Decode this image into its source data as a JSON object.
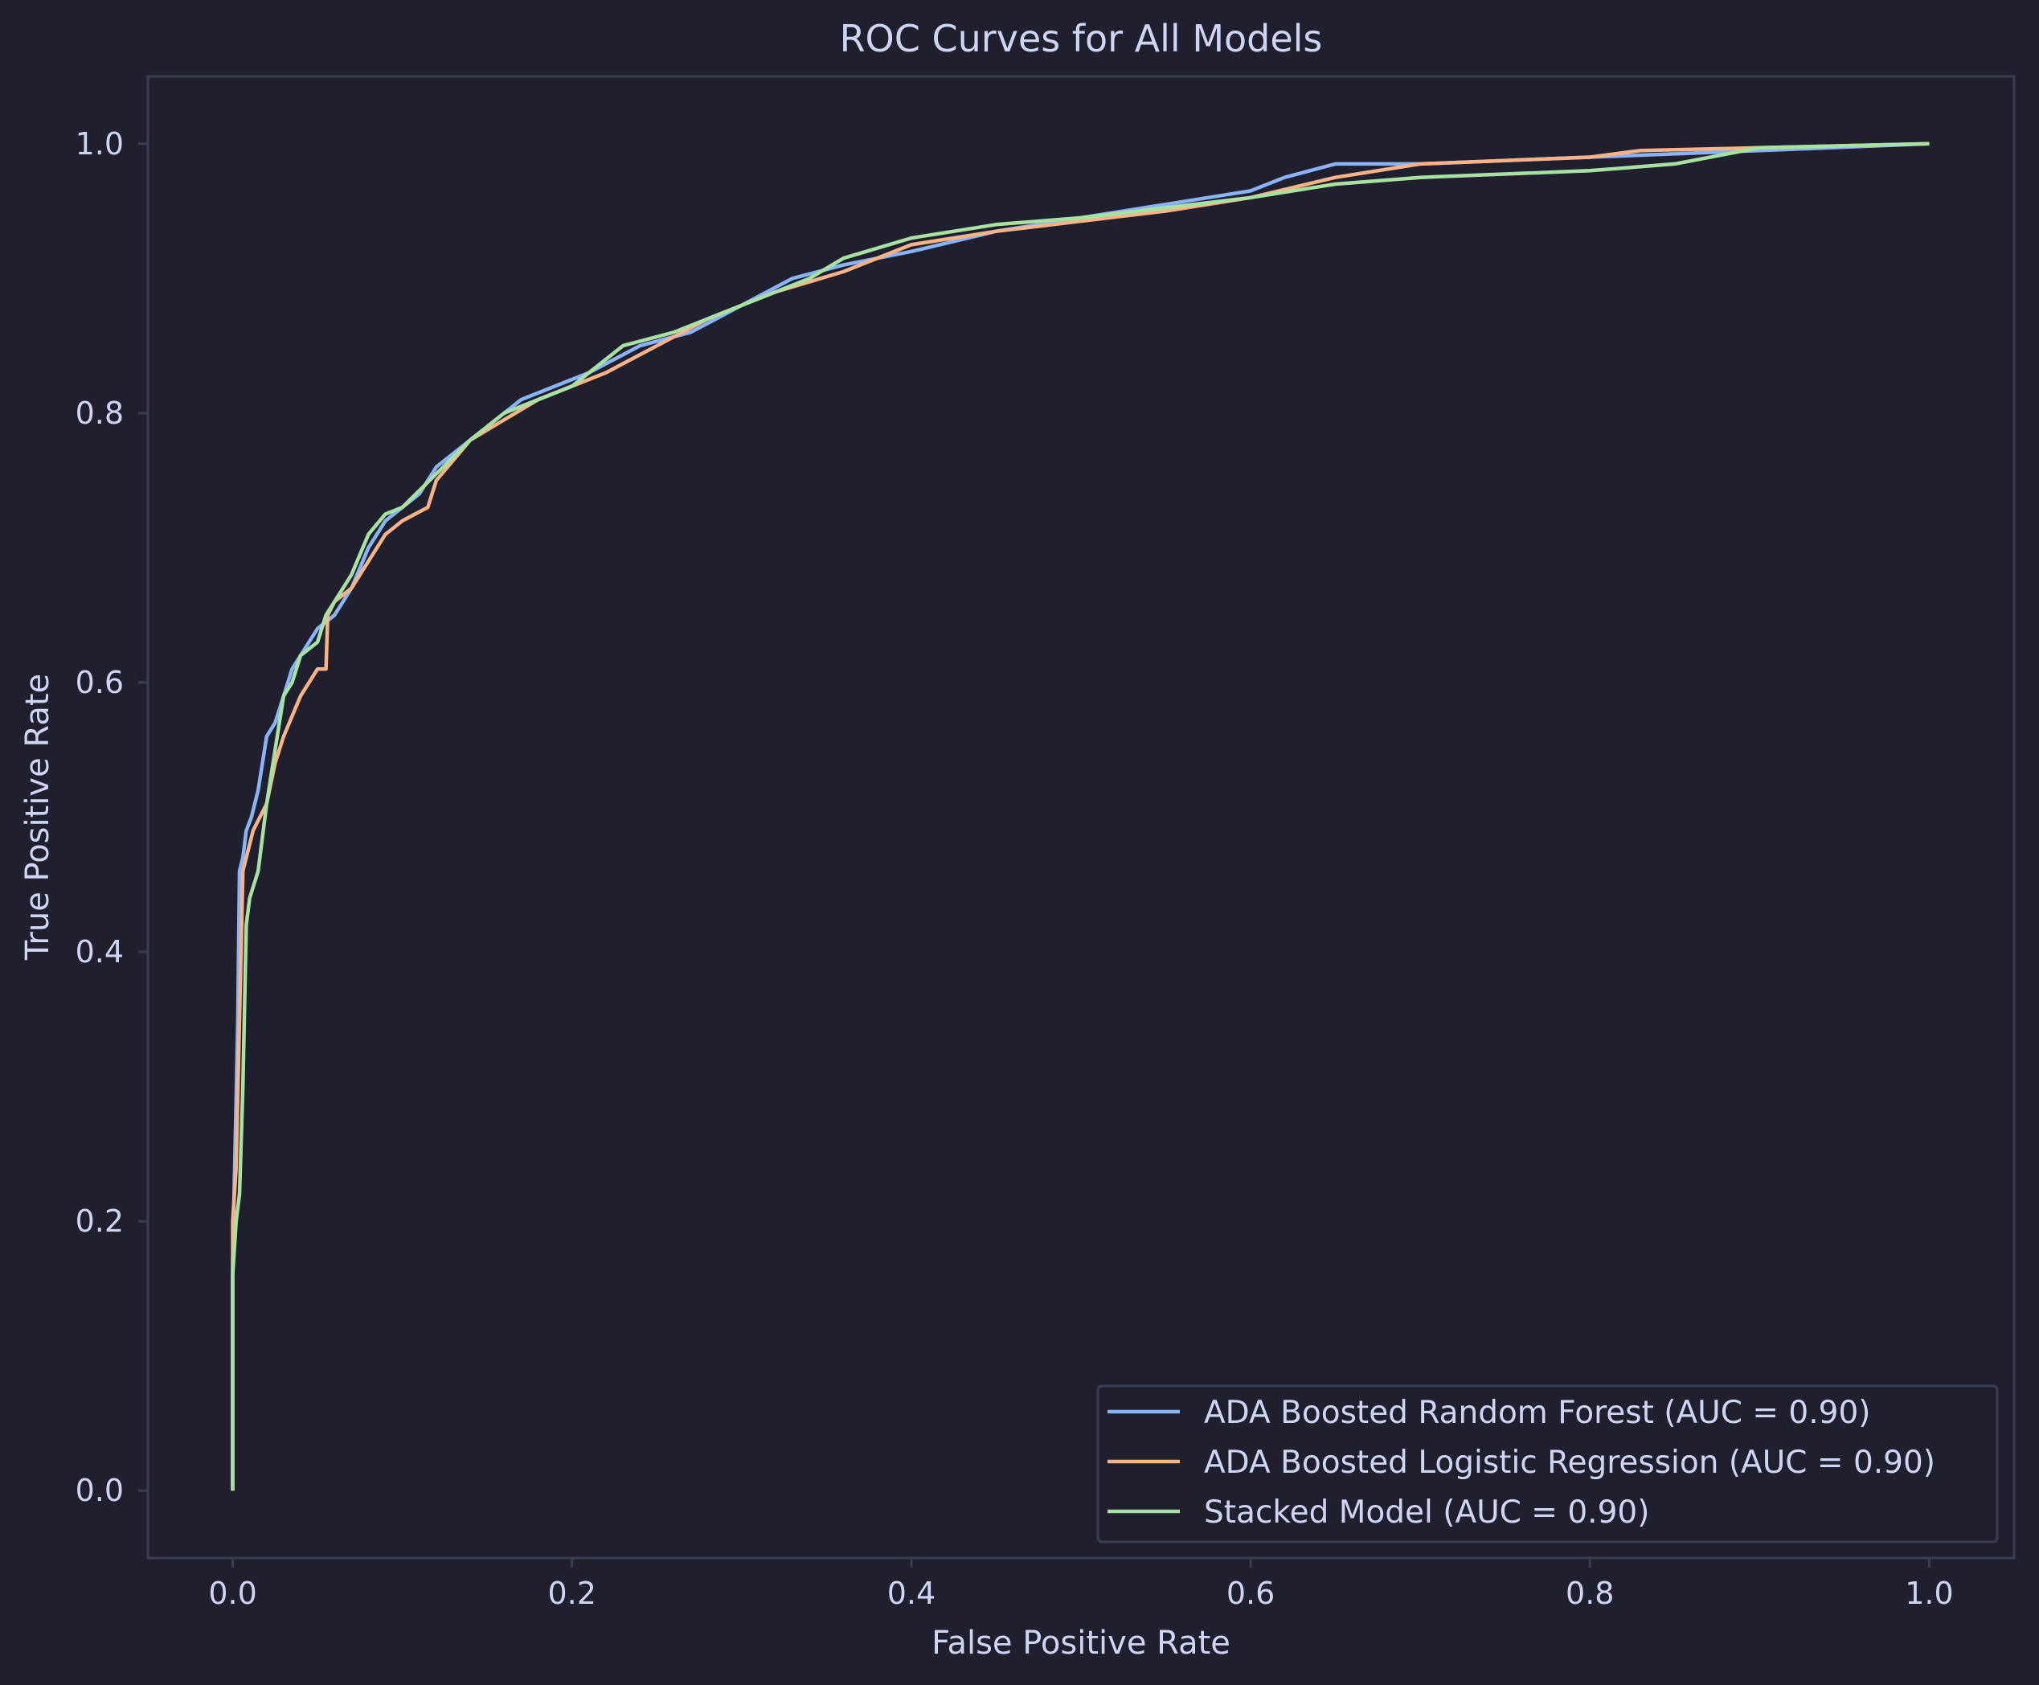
{
  "chart_data": {
    "type": "line",
    "title": "ROC Curves for All Models",
    "xlabel": "False Positive Rate",
    "ylabel": "True Positive Rate",
    "xlim": [
      -0.05,
      1.05
    ],
    "ylim": [
      -0.05,
      1.05
    ],
    "xticks": [
      "0.0",
      "0.2",
      "0.4",
      "0.6",
      "0.8",
      "1.0"
    ],
    "yticks": [
      "0.0",
      "0.2",
      "0.4",
      "0.6",
      "0.8",
      "1.0"
    ],
    "grid": false,
    "legend_position": "lower-right",
    "colors": {
      "background": "#1f1f2e",
      "spine": "#3b3d52",
      "text": "#cdd6f4"
    },
    "series": [
      {
        "name": "ADA Boosted Random Forest (AUC = 0.90)",
        "color": "#89b4fa",
        "x": [
          0.0,
          0.0,
          0.003,
          0.004,
          0.006,
          0.008,
          0.011,
          0.015,
          0.02,
          0.025,
          0.03,
          0.035,
          0.04,
          0.045,
          0.05,
          0.06,
          0.07,
          0.08,
          0.09,
          0.1,
          0.11,
          0.12,
          0.14,
          0.16,
          0.17,
          0.19,
          0.21,
          0.24,
          0.27,
          0.3,
          0.33,
          0.36,
          0.4,
          0.45,
          0.5,
          0.55,
          0.6,
          0.62,
          0.65,
          0.7,
          0.8,
          0.9,
          1.0
        ],
        "y": [
          0.0,
          0.17,
          0.35,
          0.46,
          0.47,
          0.49,
          0.5,
          0.52,
          0.56,
          0.57,
          0.59,
          0.61,
          0.62,
          0.63,
          0.64,
          0.65,
          0.67,
          0.7,
          0.72,
          0.73,
          0.74,
          0.76,
          0.78,
          0.8,
          0.81,
          0.82,
          0.83,
          0.85,
          0.86,
          0.88,
          0.9,
          0.91,
          0.92,
          0.935,
          0.945,
          0.955,
          0.965,
          0.975,
          0.985,
          0.985,
          0.99,
          0.995,
          1.0
        ]
      },
      {
        "name": "ADA Boosted Logistic Regression (AUC = 0.90)",
        "color": "#fab387",
        "x": [
          0.0,
          0.0,
          0.002,
          0.004,
          0.006,
          0.008,
          0.012,
          0.02,
          0.025,
          0.03,
          0.04,
          0.05,
          0.055,
          0.056,
          0.06,
          0.07,
          0.08,
          0.09,
          0.1,
          0.115,
          0.12,
          0.14,
          0.16,
          0.18,
          0.2,
          0.22,
          0.25,
          0.28,
          0.32,
          0.36,
          0.4,
          0.45,
          0.55,
          0.6,
          0.65,
          0.7,
          0.8,
          0.83,
          0.9,
          1.0
        ],
        "y": [
          0.0,
          0.2,
          0.24,
          0.35,
          0.46,
          0.47,
          0.49,
          0.51,
          0.54,
          0.56,
          0.59,
          0.61,
          0.61,
          0.65,
          0.66,
          0.67,
          0.69,
          0.71,
          0.72,
          0.73,
          0.75,
          0.78,
          0.795,
          0.81,
          0.82,
          0.83,
          0.85,
          0.87,
          0.89,
          0.905,
          0.925,
          0.935,
          0.95,
          0.96,
          0.975,
          0.985,
          0.99,
          0.995,
          0.997,
          1.0
        ]
      },
      {
        "name": "Stacked Model (AUC = 0.90)",
        "color": "#a6e3a1",
        "x": [
          0.0,
          0.0,
          0.002,
          0.004,
          0.006,
          0.008,
          0.01,
          0.015,
          0.02,
          0.025,
          0.03,
          0.035,
          0.04,
          0.05,
          0.055,
          0.06,
          0.07,
          0.08,
          0.09,
          0.1,
          0.12,
          0.14,
          0.16,
          0.18,
          0.2,
          0.23,
          0.26,
          0.3,
          0.34,
          0.36,
          0.4,
          0.45,
          0.5,
          0.6,
          0.65,
          0.7,
          0.8,
          0.85,
          0.9,
          1.0
        ],
        "y": [
          0.0,
          0.16,
          0.2,
          0.22,
          0.3,
          0.42,
          0.44,
          0.46,
          0.51,
          0.55,
          0.59,
          0.6,
          0.62,
          0.63,
          0.65,
          0.66,
          0.68,
          0.71,
          0.725,
          0.73,
          0.755,
          0.78,
          0.8,
          0.81,
          0.82,
          0.85,
          0.86,
          0.88,
          0.9,
          0.915,
          0.93,
          0.94,
          0.945,
          0.96,
          0.97,
          0.975,
          0.98,
          0.985,
          0.997,
          1.0
        ]
      }
    ]
  }
}
